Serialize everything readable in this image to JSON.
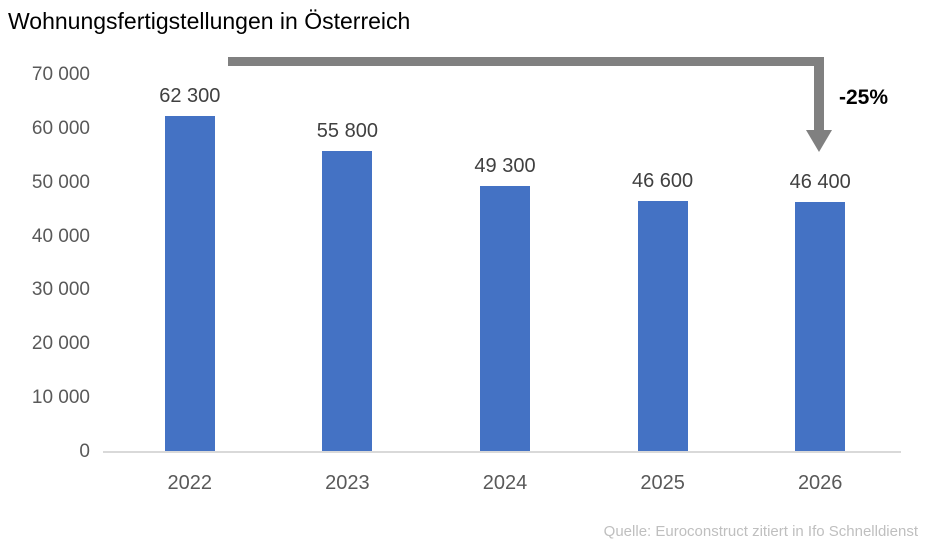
{
  "title": "Wohnungsfertigstellungen in Österreich",
  "source": "Quelle: Euroconstruct zitiert in Ifo Schnelldienst",
  "annotation": {
    "label": "-25%"
  },
  "colors": {
    "bar": "#4472C4",
    "arrow": "#808080",
    "title": "#000000",
    "axis_text": "#595959",
    "bar_label_text": "#404040",
    "annotation_text": "#000000",
    "source_text": "#BFBFBF",
    "baseline": "#D9D9D9",
    "background": "#FFFFFF"
  },
  "chart_data": {
    "type": "bar",
    "title": "Wohnungsfertigstellungen in Österreich",
    "categories": [
      "2022",
      "2023",
      "2024",
      "2025",
      "2026"
    ],
    "values": [
      62300,
      55800,
      49300,
      46600,
      46400
    ],
    "value_labels": [
      "62 300",
      "55 800",
      "49 300",
      "46 600",
      "46 400"
    ],
    "xlabel": "",
    "ylabel": "",
    "ylim": [
      0,
      70000
    ],
    "ytick_step": 10000,
    "ytick_labels": [
      "0",
      "10 000",
      "20 000",
      "30 000",
      "40 000",
      "50 000",
      "60 000",
      "70 000"
    ],
    "grid": false,
    "legend": null,
    "annotation": "-25%",
    "annotation_meaning": "decline arrow from 2022 level down to 2026 bar",
    "series_color": "#4472C4"
  }
}
